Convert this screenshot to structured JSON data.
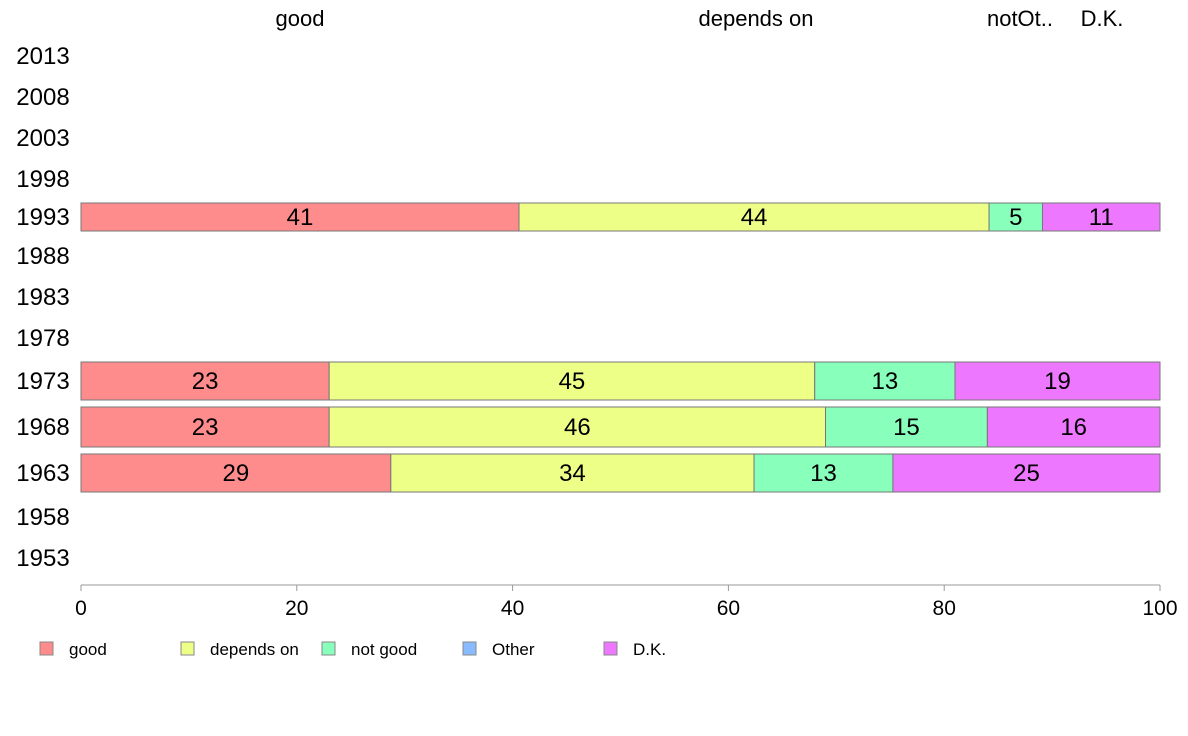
{
  "chart_data": {
    "type": "bar",
    "orientation": "horizontal",
    "stacked": true,
    "categories": [
      "2013",
      "2008",
      "2003",
      "1998",
      "1993",
      "1988",
      "1983",
      "1978",
      "1973",
      "1968",
      "1963",
      "1958",
      "1953"
    ],
    "top_labels": [
      "good",
      "depends on",
      "notOt..",
      "D.K."
    ],
    "series": [
      {
        "name": "good",
        "color": "#FF8C8C",
        "values": [
          null,
          null,
          null,
          null,
          41,
          null,
          null,
          null,
          23,
          23,
          29,
          null,
          null
        ]
      },
      {
        "name": "depends on",
        "color": "#EEFF88",
        "values": [
          null,
          null,
          null,
          null,
          44,
          null,
          null,
          null,
          45,
          46,
          34,
          null,
          null
        ]
      },
      {
        "name": "not good",
        "color": "#88FFBB",
        "values": [
          null,
          null,
          null,
          null,
          5,
          null,
          null,
          null,
          13,
          15,
          13,
          null,
          null
        ]
      },
      {
        "name": "Other",
        "color": "#88BBFF",
        "values": [
          null,
          null,
          null,
          null,
          0,
          null,
          null,
          null,
          0,
          0,
          0,
          null,
          null
        ]
      },
      {
        "name": "D.K.",
        "color": "#EE77FF",
        "values": [
          null,
          null,
          null,
          null,
          11,
          null,
          null,
          null,
          19,
          16,
          25,
          null,
          null
        ]
      }
    ],
    "xlim": [
      0,
      100
    ],
    "xticks": [
      0,
      20,
      40,
      60,
      80,
      100
    ],
    "legend_position": "bottom-left",
    "grid": false
  }
}
